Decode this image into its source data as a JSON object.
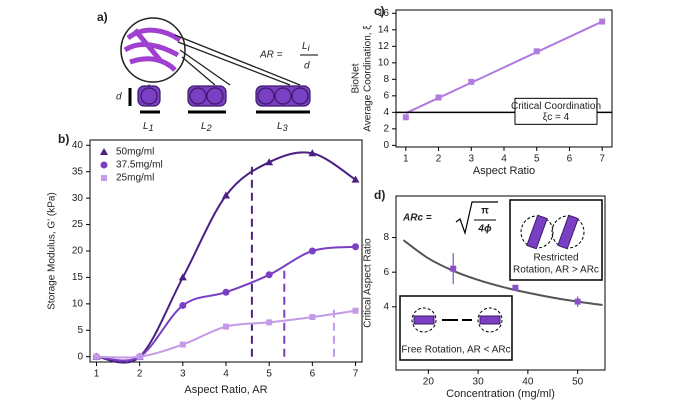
{
  "panel_a": {
    "label": "a)",
    "formula_lhs": "AR =",
    "numerator": "L",
    "numerator_sub": "i",
    "denominator": "d",
    "dimension": "d",
    "lengths": [
      {
        "main": "L",
        "sub": "1"
      },
      {
        "main": "L",
        "sub": "2"
      },
      {
        "main": "L",
        "sub": "3"
      }
    ]
  },
  "chart_data": [
    {
      "type": "line",
      "panel": "b)",
      "xlabel": "Aspect Ratio, AR",
      "ylabel": "Storage Modulus, G' (kPa)",
      "x": [
        1,
        2,
        3,
        4,
        5,
        6,
        7
      ],
      "xlim": [
        0.85,
        7.15
      ],
      "xticks": [
        1,
        2,
        3,
        4,
        5,
        6,
        7
      ],
      "ylim": [
        -1,
        41
      ],
      "yticks": [
        0,
        5,
        10,
        15,
        20,
        25,
        30,
        35,
        40
      ],
      "legend": "top-left",
      "series": [
        {
          "name": "50mg/ml",
          "color": "#4b2083",
          "marker": "triangle",
          "values": [
            0,
            0,
            15,
            30.5,
            36.8,
            38.5,
            33.5
          ]
        },
        {
          "name": "37.5mg/ml",
          "color": "#7b3fc4",
          "marker": "circle",
          "values": [
            0,
            0,
            9.7,
            12.2,
            15.5,
            20,
            20.8
          ]
        },
        {
          "name": "25mg/ml",
          "color": "#c39ae8",
          "marker": "square",
          "values": [
            0,
            0,
            2.3,
            5.7,
            6.5,
            7.5,
            8.7
          ]
        }
      ],
      "critical_lines": [
        {
          "x": 4.6,
          "y": 36,
          "color": "#4b2083"
        },
        {
          "x": 5.35,
          "y": 16.5,
          "color": "#7b3fc4"
        },
        {
          "x": 6.5,
          "y": 9.5,
          "color": "#c39ae8"
        }
      ]
    },
    {
      "type": "line",
      "panel": "c)",
      "xlabel": "Aspect Ratio",
      "ylabel": "Average Coordination, ξ",
      "ylabel_top": "BioNet",
      "x": [
        1,
        2,
        3,
        5,
        7
      ],
      "xlim": [
        0.7,
        7.3
      ],
      "xticks": [
        1,
        2,
        3,
        4,
        5,
        6,
        7
      ],
      "ylim": [
        -0.2,
        16.4
      ],
      "yticks": [
        0,
        2,
        4,
        6,
        8,
        10,
        12,
        14,
        16
      ],
      "series": [
        {
          "name": "BioNet",
          "color": "#b07be0",
          "marker": "square",
          "values": [
            3.4,
            5.8,
            7.7,
            11.4,
            15
          ]
        }
      ],
      "fit": {
        "x": [
          1,
          7
        ],
        "values": [
          3.9,
          15
        ],
        "color": "#b07be0"
      },
      "hline": {
        "value": 4,
        "color": "#000"
      },
      "box_title": "Critical Coordination",
      "box_text": "ξc = 4"
    },
    {
      "type": "scatter",
      "panel": "d)",
      "xlabel": "Concentration (mg/ml)",
      "ylabel": "Critical Aspect Ratio",
      "x": [
        25,
        37.5,
        50
      ],
      "xlim": [
        13.5,
        55.5
      ],
      "xticks": [
        20,
        30,
        40,
        50
      ],
      "ylim": [
        0.35,
        10.4
      ],
      "yticks": [
        4,
        6,
        8
      ],
      "series": [
        {
          "name": "Critical Aspect Ratio",
          "color": "#8a4fc9",
          "marker": "square",
          "values": [
            6.2,
            5.1,
            4.3
          ],
          "errors": [
            0.9,
            0.15,
            0.3
          ]
        }
      ],
      "fit": {
        "x": [
          15,
          20,
          25,
          30,
          35,
          40,
          45,
          50,
          55
        ],
        "values": [
          7.85,
          6.8,
          6.08,
          5.55,
          5.14,
          4.81,
          4.53,
          4.3,
          4.1
        ],
        "color": "#555"
      },
      "formula": "ARc =",
      "formula_root": "π",
      "formula_den": "4ϕ",
      "restricted": [
        "Restricted",
        "Rotation, AR > ARc"
      ],
      "free": "Free Rotation, AR < ARc"
    }
  ]
}
